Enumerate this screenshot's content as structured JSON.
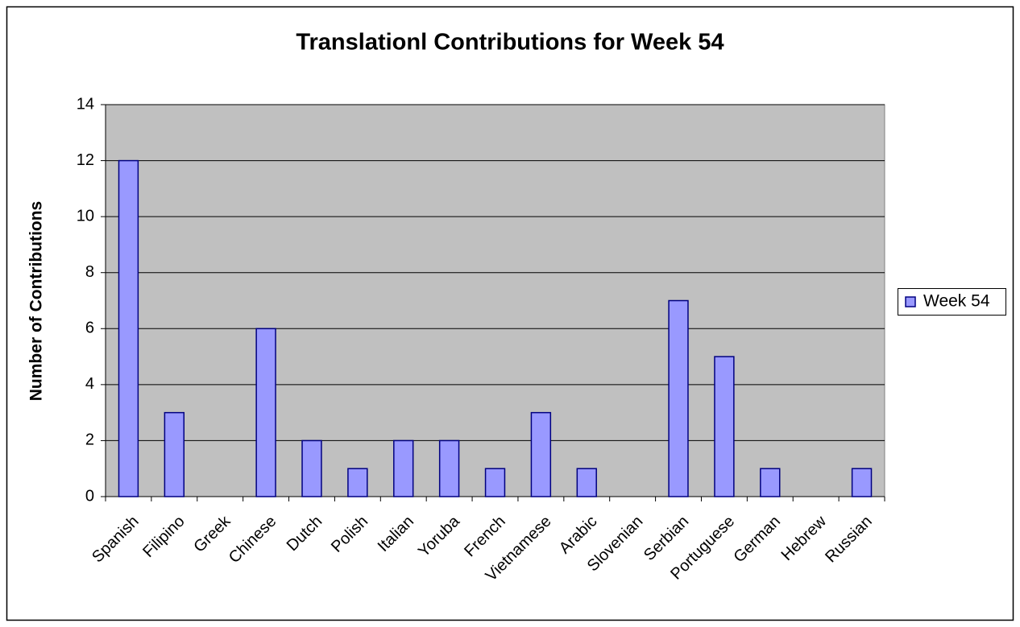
{
  "chart_data": {
    "type": "bar",
    "title": "Translationl Contributions for Week 54",
    "y_label": "Number of Contributions",
    "categories": [
      "Spanish",
      "Filipino",
      "Greek",
      "Chinese",
      "Dutch",
      "Polish",
      "Italian",
      "Yoruba",
      "French",
      "Vietnamese",
      "Arabic",
      "Slovenian",
      "Serbian",
      "Portuguese",
      "German",
      "Hebrew",
      "Russian"
    ],
    "series": [
      {
        "name": "Week 54",
        "color": "#9999ff",
        "values": [
          12,
          3,
          0,
          6,
          2,
          1,
          2,
          2,
          1,
          3,
          1,
          0,
          7,
          5,
          1,
          0,
          1
        ]
      }
    ],
    "ylim": [
      0,
      14
    ],
    "yticks": [
      0,
      2,
      4,
      6,
      8,
      10,
      12,
      14
    ],
    "grid": true,
    "legend": "right"
  }
}
